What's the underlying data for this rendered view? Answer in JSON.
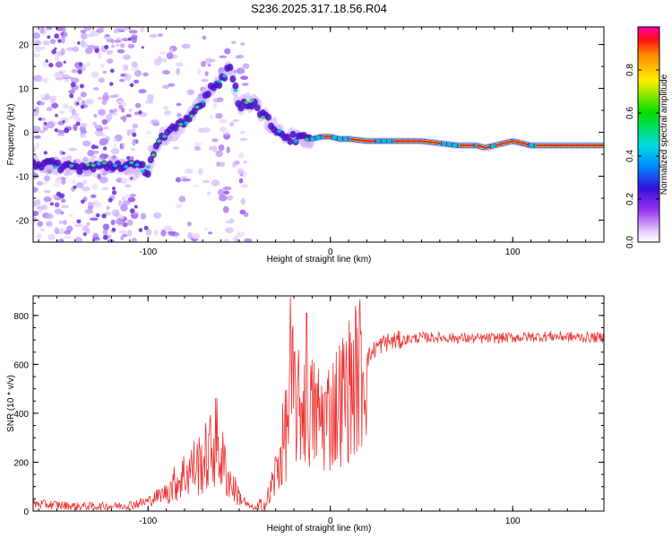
{
  "title": "S236.2025.317.18.56.R04",
  "chart_data": [
    {
      "type": "heatmap",
      "xlabel": "Height of straight line (km)",
      "ylabel": "Frequency (Hz)",
      "xlim": [
        -163,
        150
      ],
      "ylim": [
        -25,
        24
      ],
      "x_ticks": [
        -100,
        0,
        100
      ],
      "x_tick_labels": [
        "-100",
        "0",
        "100"
      ],
      "y_ticks": [
        -20,
        -10,
        0,
        10,
        20
      ],
      "y_tick_labels": [
        "-20",
        "-10",
        "0",
        "10",
        "20"
      ],
      "ridge": {
        "name": "dominant frequency",
        "x": [
          -163,
          -150,
          -140,
          -130,
          -120,
          -110,
          -100,
          -95,
          -88,
          -80,
          -72,
          -66,
          -60,
          -55,
          -50,
          -45,
          -40,
          -37,
          -33,
          -28,
          -24,
          -20,
          -15,
          -10,
          -5,
          0,
          5,
          10,
          20,
          30,
          40,
          50,
          60,
          70,
          80,
          85,
          90,
          95,
          100,
          110,
          120,
          130,
          140,
          150
        ],
        "y": [
          -7,
          -7.5,
          -8,
          -8,
          -7.5,
          -7.5,
          -8.5,
          -2,
          0,
          2,
          6,
          10,
          12,
          15,
          6,
          7,
          6,
          4,
          2,
          0,
          -1,
          -1.5,
          -1.5,
          -1.5,
          -1,
          -1,
          -1.5,
          -1.5,
          -2,
          -2,
          -2,
          -2,
          -2.5,
          -3,
          -3,
          -3.5,
          -3,
          -2.5,
          -2,
          -3,
          -3,
          -3,
          -3,
          -3
        ]
      },
      "colorbar": {
        "label": "Normalized spectral amplitude",
        "range": [
          0,
          1
        ],
        "ticks": [
          0.0,
          0.2,
          0.4,
          0.6,
          0.8
        ],
        "tick_labels": [
          "0.0",
          "0.2",
          "0.4",
          "0.6",
          "0.8"
        ]
      }
    },
    {
      "type": "line",
      "xlabel": "Height of straight line (km)",
      "ylabel": "SNR (10 * v/v)",
      "xlim": [
        -163,
        150
      ],
      "ylim": [
        0,
        880
      ],
      "x_ticks": [
        -100,
        0,
        100
      ],
      "x_tick_labels": [
        "-100",
        "0",
        "100"
      ],
      "y_ticks": [
        0,
        200,
        400,
        600,
        800
      ],
      "y_tick_labels": [
        "0",
        "200",
        "400",
        "600",
        "800"
      ],
      "color": "#ee3333",
      "series": [
        {
          "name": "SNR",
          "x": [
            -163,
            -150,
            -140,
            -130,
            -120,
            -110,
            -100,
            -90,
            -80,
            -75,
            -70,
            -65,
            -63,
            -60,
            -55,
            -50,
            -45,
            -40,
            -35,
            -30,
            -25,
            -22,
            -20,
            -18,
            -15,
            -10,
            -5,
            0,
            5,
            10,
            15,
            20,
            25,
            30,
            40,
            50,
            60,
            80,
            100,
            120,
            140,
            150
          ],
          "y": [
            30,
            25,
            20,
            20,
            20,
            25,
            40,
            80,
            150,
            180,
            200,
            250,
            300,
            220,
            120,
            60,
            20,
            10,
            30,
            150,
            300,
            450,
            500,
            400,
            450,
            400,
            380,
            400,
            450,
            500,
            550,
            620,
            670,
            690,
            700,
            710,
            710,
            705,
            710,
            715,
            710,
            710
          ]
        }
      ],
      "peaks": [
        {
          "x": -22,
          "y": 875
        },
        {
          "x": -13,
          "y": 810
        }
      ]
    }
  ]
}
